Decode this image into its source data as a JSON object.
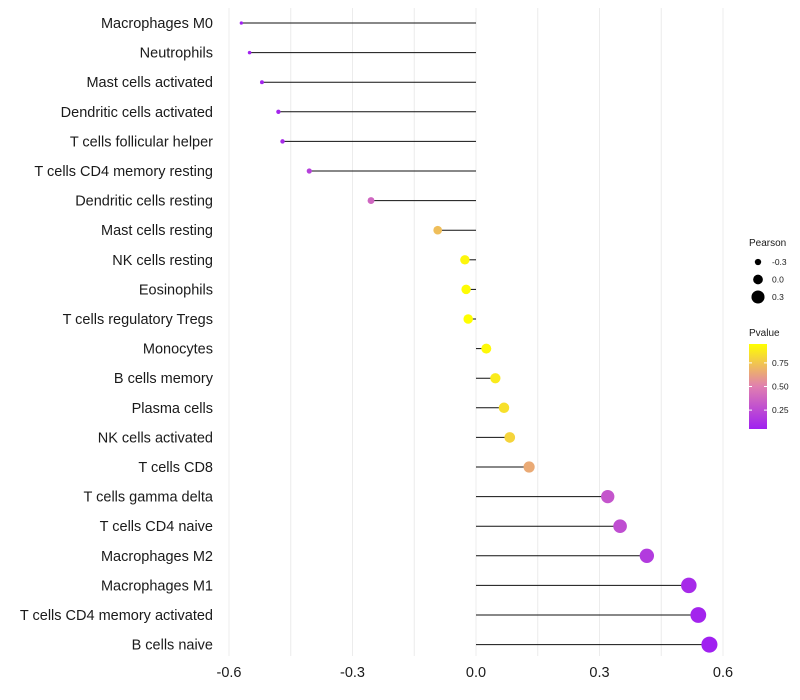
{
  "chart_data": {
    "type": "lollipop",
    "xlim": [
      -0.6,
      0.6
    ],
    "x_ticks": [
      -0.6,
      -0.3,
      0.0,
      0.3,
      0.6
    ],
    "x_tick_labels": [
      "-0.6",
      "-0.3",
      "0.0",
      "0.3",
      "0.6"
    ],
    "items": [
      {
        "name": "Macrophages M0",
        "value": -0.57,
        "pvalue": 0.05
      },
      {
        "name": "Neutrophils",
        "value": -0.55,
        "pvalue": 0.06
      },
      {
        "name": "Mast cells activated",
        "value": -0.52,
        "pvalue": 0.07
      },
      {
        "name": "Dendritic cells activated",
        "value": -0.48,
        "pvalue": 0.08
      },
      {
        "name": "T cells follicular helper",
        "value": -0.47,
        "pvalue": 0.1
      },
      {
        "name": "T cells CD4 memory resting",
        "value": -0.405,
        "pvalue": 0.2
      },
      {
        "name": "Dendritic cells resting",
        "value": -0.255,
        "pvalue": 0.38
      },
      {
        "name": "Mast cells resting",
        "value": -0.093,
        "pvalue": 0.72
      },
      {
        "name": "NK cells resting",
        "value": -0.027,
        "pvalue": 0.92
      },
      {
        "name": "Eosinophils",
        "value": -0.024,
        "pvalue": 0.94
      },
      {
        "name": "T cells regulatory  Tregs ",
        "value": -0.019,
        "pvalue": 0.95
      },
      {
        "name": "Monocytes",
        "value": 0.025,
        "pvalue": 0.93
      },
      {
        "name": "B cells memory",
        "value": 0.047,
        "pvalue": 0.88
      },
      {
        "name": "Plasma cells",
        "value": 0.068,
        "pvalue": 0.84
      },
      {
        "name": "NK cells activated",
        "value": 0.082,
        "pvalue": 0.8
      },
      {
        "name": "T cells CD8",
        "value": 0.129,
        "pvalue": 0.65
      },
      {
        "name": "T cells gamma delta",
        "value": 0.32,
        "pvalue": 0.3
      },
      {
        "name": "T cells CD4 naive",
        "value": 0.35,
        "pvalue": 0.27
      },
      {
        "name": "Macrophages M2",
        "value": 0.415,
        "pvalue": 0.18
      },
      {
        "name": "Macrophages M1",
        "value": 0.517,
        "pvalue": 0.1
      },
      {
        "name": "T cells CD4 memory activated",
        "value": 0.54,
        "pvalue": 0.07
      },
      {
        "name": "B cells naive",
        "value": 0.567,
        "pvalue": 0.05
      }
    ],
    "size_legend": {
      "title": "Pearson",
      "entries": [
        {
          "label": "-0.3",
          "value": -0.3
        },
        {
          "label": "0.0",
          "value": 0.0
        },
        {
          "label": "0.3",
          "value": 0.3
        }
      ]
    },
    "color_legend": {
      "title": "Pvalue",
      "low_color": "#a020f0",
      "mid_color": "#e07fb0",
      "high_color": "#ffff00",
      "range": [
        0.05,
        0.95
      ],
      "ticks": [
        {
          "label": "0.75",
          "value": 0.75
        },
        {
          "label": "0.50",
          "value": 0.5
        },
        {
          "label": "0.25",
          "value": 0.25
        }
      ]
    }
  }
}
